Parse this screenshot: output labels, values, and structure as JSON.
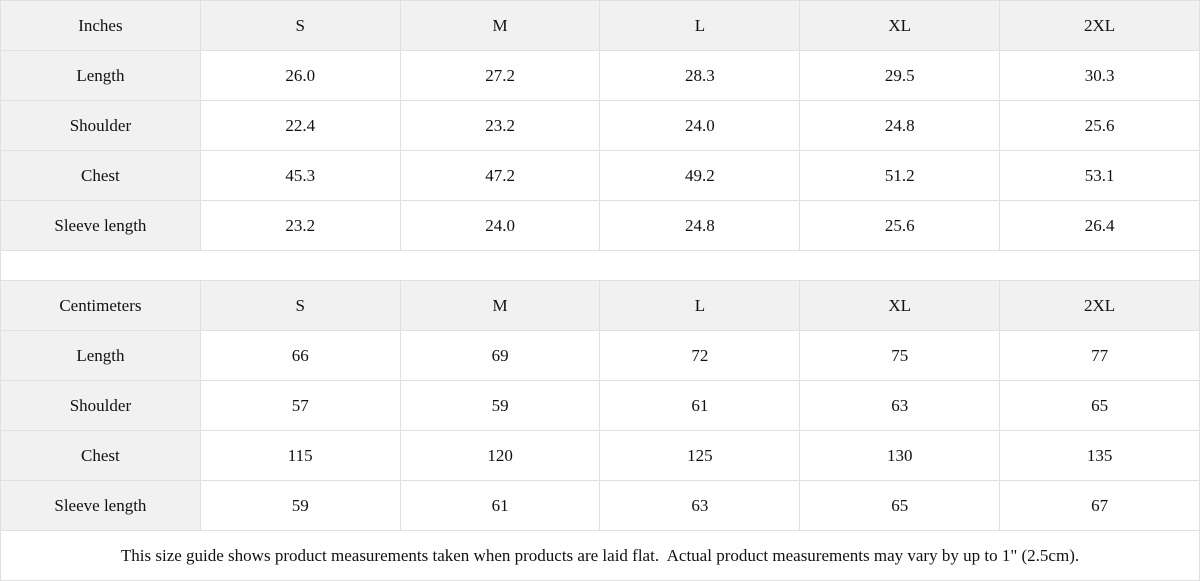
{
  "page": {
    "background_color": "#ffffff",
    "header_cell_color": "#f1f1f1",
    "border_color": "#e0e0e0",
    "text_color": "#111111"
  },
  "footer_note": "This size guide shows product measurements taken when products are laid flat.  Actual product measurements may vary by up to 1\" (2.5cm).",
  "chart_data": [
    {
      "type": "table",
      "title": "Inches",
      "columns": [
        "Inches",
        "S",
        "M",
        "L",
        "XL",
        "2XL"
      ],
      "rows": [
        [
          "Length",
          "26.0",
          "27.2",
          "28.3",
          "29.5",
          "30.3"
        ],
        [
          "Shoulder",
          "22.4",
          "23.2",
          "24.0",
          "24.8",
          "25.6"
        ],
        [
          "Chest",
          "45.3",
          "47.2",
          "49.2",
          "51.2",
          "53.1"
        ],
        [
          "Sleeve length",
          "23.2",
          "24.0",
          "24.8",
          "25.6",
          "26.4"
        ]
      ]
    },
    {
      "type": "table",
      "title": "Centimeters",
      "columns": [
        "Centimeters",
        "S",
        "M",
        "L",
        "XL",
        "2XL"
      ],
      "rows": [
        [
          "Length",
          "66",
          "69",
          "72",
          "75",
          "77"
        ],
        [
          "Shoulder",
          "57",
          "59",
          "61",
          "63",
          "65"
        ],
        [
          "Chest",
          "115",
          "120",
          "125",
          "130",
          "135"
        ],
        [
          "Sleeve length",
          "59",
          "61",
          "63",
          "65",
          "67"
        ]
      ]
    }
  ]
}
